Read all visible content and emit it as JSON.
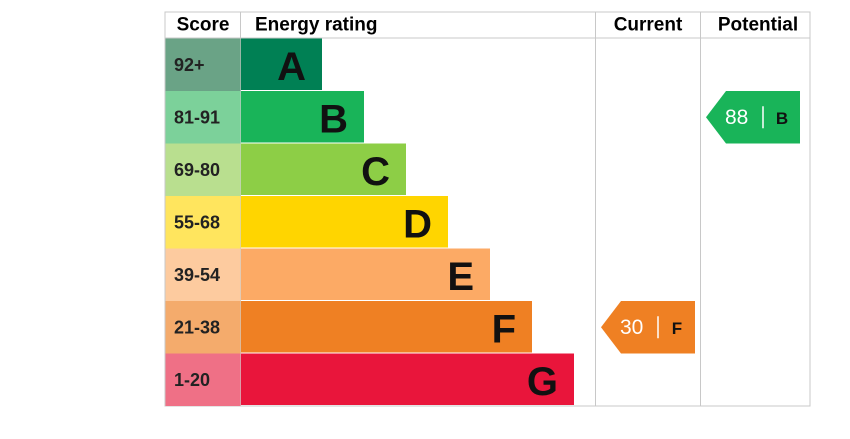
{
  "header": {
    "score": "Score",
    "rating": "Energy rating",
    "current": "Current",
    "potential": "Potential"
  },
  "rows": [
    {
      "score": "92+",
      "band": "A",
      "color": "#008054",
      "light": "#6aa386"
    },
    {
      "score": "81-91",
      "band": "B",
      "color": "#19b459",
      "light": "#7cd19a"
    },
    {
      "score": "69-80",
      "band": "C",
      "color": "#8dce46",
      "light": "#b9df8f"
    },
    {
      "score": "55-68",
      "band": "D",
      "color": "#ffd500",
      "light": "#ffe55e"
    },
    {
      "score": "39-54",
      "band": "E",
      "color": "#fcaa65",
      "light": "#fdcb9f"
    },
    {
      "score": "21-38",
      "band": "F",
      "color": "#ef8023",
      "light": "#f4ab6c"
    },
    {
      "score": "1-20",
      "band": "G",
      "color": "#e9153b",
      "light": "#ef7086"
    }
  ],
  "current": {
    "value": 30,
    "band": "F"
  },
  "potential": {
    "value": 88,
    "band": "B"
  }
}
